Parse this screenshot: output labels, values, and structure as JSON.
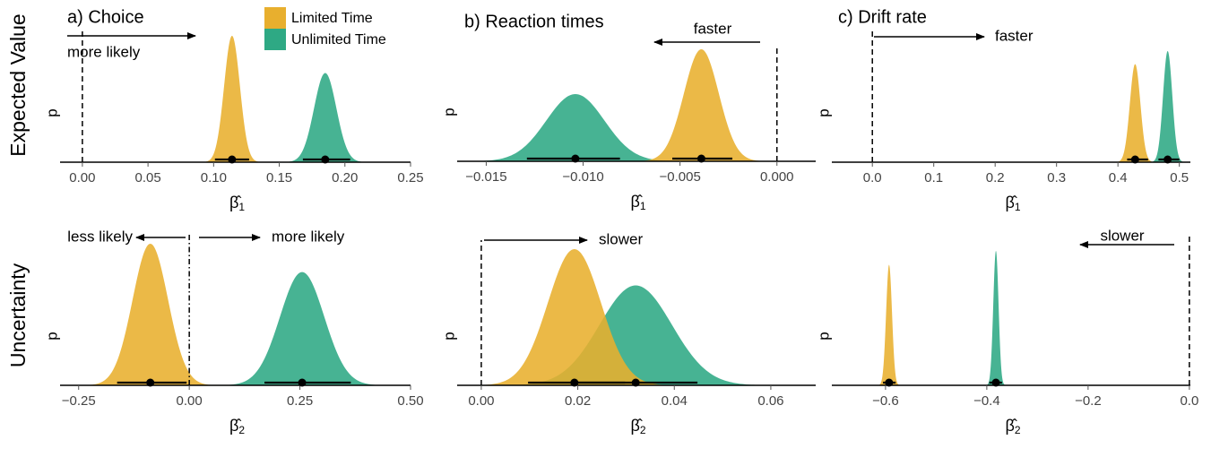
{
  "row_labels": [
    "Expected Value",
    "Uncertainty"
  ],
  "chart_data": [
    {
      "type": "density",
      "title": "a) Choice",
      "ylabel": "p",
      "xlabel": {
        "symbol": "β̂",
        "subscript": "1"
      },
      "xlim": [
        -0.017,
        0.25
      ],
      "xticks": [
        {
          "value": 0,
          "label": "0.00"
        },
        0.05,
        {
          "value": 0.1,
          "label": "0.10"
        },
        0.15,
        {
          "value": 0.2,
          "label": "0.20"
        },
        0.25
      ],
      "refline": {
        "value": 0,
        "style": "dashed"
      },
      "annotations": [
        "more likely"
      ],
      "legend": true,
      "series": [
        {
          "name": "Limited Time",
          "color": "#E8AF2E",
          "values": [
            0.114
          ],
          "interval": [
            0.101,
            0.127
          ],
          "sd": 0.006
        },
        {
          "name": "Unlimited Time",
          "color": "#2EA984",
          "values": [
            0.185
          ],
          "interval": [
            0.168,
            0.204
          ],
          "sd": 0.0085
        }
      ]
    },
    {
      "type": "density",
      "title": "b) Reaction times",
      "ylabel": "p",
      "xlabel": {
        "symbol": "β̂",
        "subscript": "1"
      },
      "xlim": [
        -0.0165,
        0.002
      ],
      "xticks": [
        {
          "value": -0.015,
          "label": "−0.015"
        },
        {
          "value": -0.01,
          "label": "−0.010"
        },
        {
          "value": -0.005,
          "label": "−0.005"
        },
        {
          "value": 0,
          "label": "0.000"
        }
      ],
      "refline": {
        "value": 0,
        "style": "dashed"
      },
      "annotations": [
        "faster"
      ],
      "series": [
        {
          "color": "#E8AF2E",
          "values": [
            -0.0039
          ],
          "interval": [
            -0.0054,
            -0.0023
          ],
          "sd": 0.0009
        },
        {
          "color": "#2EA984",
          "values": [
            -0.0104
          ],
          "interval": [
            -0.0129,
            -0.0081
          ],
          "sd": 0.0015
        }
      ]
    },
    {
      "type": "density",
      "title": "c) Drift rate",
      "ylabel": "p",
      "xlabel": {
        "symbol": "β̂",
        "subscript": "1"
      },
      "xlim": [
        -0.066,
        0.518
      ],
      "xticks": [
        {
          "value": 0,
          "label": "0.0"
        },
        0.1,
        0.2,
        0.3,
        0.4,
        0.5
      ],
      "refline": {
        "value": 0,
        "style": "dashed"
      },
      "annotations": [
        "faster"
      ],
      "series": [
        {
          "color": "#E8AF2E",
          "values": [
            0.428
          ],
          "interval": [
            0.415,
            0.449
          ],
          "sd": 0.0085
        },
        {
          "color": "#2EA984",
          "values": [
            0.481
          ],
          "interval": [
            0.466,
            0.5
          ],
          "sd": 0.0075
        }
      ]
    },
    {
      "type": "density",
      "ylabel": "p",
      "xlabel": {
        "symbol": "β̂",
        "subscript": "2"
      },
      "xlim": [
        -0.292,
        0.5
      ],
      "xticks": [
        {
          "value": -0.25,
          "label": "−0.25"
        },
        {
          "value": 0,
          "label": "0.00"
        },
        0.25,
        {
          "value": 0.5,
          "label": "0.50"
        }
      ],
      "refline": {
        "value": 0,
        "style": "dashdot"
      },
      "annotations": [
        "less likely",
        "more likely"
      ],
      "series": [
        {
          "color": "#E8AF2E",
          "values": [
            -0.088
          ],
          "interval": [
            -0.163,
            -0.006
          ],
          "sd": 0.04
        },
        {
          "color": "#2EA984",
          "values": [
            0.255
          ],
          "interval": [
            0.17,
            0.365
          ],
          "sd": 0.05
        }
      ]
    },
    {
      "type": "density",
      "ylabel": "p",
      "xlabel": {
        "symbol": "β̂",
        "subscript": "2"
      },
      "xlim": [
        -0.005,
        0.0693
      ],
      "xticks": [
        {
          "value": 0,
          "label": "0.00"
        },
        0.02,
        0.04,
        0.06
      ],
      "refline": {
        "value": 0,
        "style": "dashed"
      },
      "annotations": [
        "slower"
      ],
      "series": [
        {
          "color": "#E8AF2E",
          "values": [
            0.0193
          ],
          "interval": [
            0.0097,
            0.0298
          ],
          "sd": 0.0055
        },
        {
          "color": "#2EA984",
          "values": [
            0.032
          ],
          "interval": [
            0.0186,
            0.0448
          ],
          "sd": 0.0075
        }
      ]
    },
    {
      "type": "density",
      "ylabel": "p",
      "xlabel": {
        "symbol": "β̂",
        "subscript": "2"
      },
      "xlim": [
        -0.706,
        0.002
      ],
      "xticks": [
        {
          "value": -0.6,
          "label": "−0.6"
        },
        {
          "value": -0.4,
          "label": "−0.4"
        },
        {
          "value": -0.2,
          "label": "−0.2"
        },
        {
          "value": 0,
          "label": "0.0"
        }
      ],
      "refline": {
        "value": 0,
        "style": "dashed"
      },
      "annotations": [
        "slower"
      ],
      "series": [
        {
          "color": "#E8AF2E",
          "values": [
            -0.593
          ],
          "interval": [
            -0.605,
            -0.58
          ],
          "sd": 0.0058
        },
        {
          "color": "#2EA984",
          "values": [
            -0.382
          ],
          "interval": [
            -0.395,
            -0.37
          ],
          "sd": 0.0052
        }
      ]
    }
  ]
}
